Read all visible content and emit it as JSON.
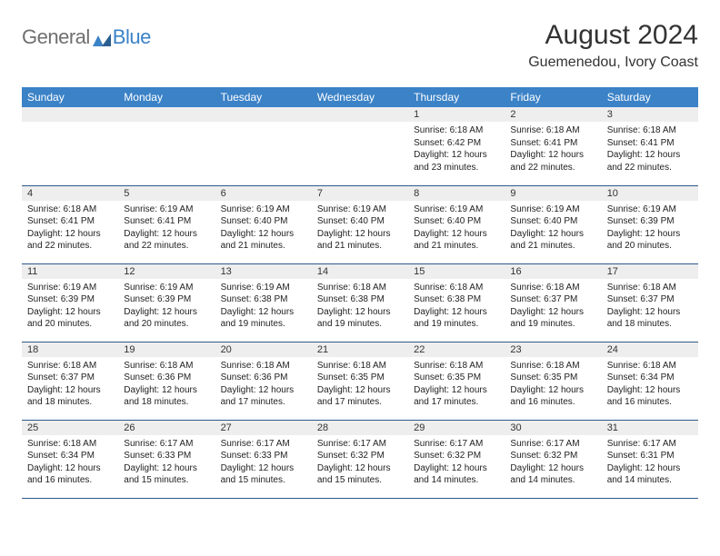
{
  "brand": {
    "word1": "General",
    "word2": "Blue"
  },
  "header": {
    "month_title": "August 2024",
    "location": "Guemenedou, Ivory Coast"
  },
  "colors": {
    "accent": "#3b82c7",
    "logo_gray": "#6f6f6f",
    "daynum_bg": "#eeeeee",
    "row_border": "#2d5a8a",
    "text": "#333333"
  },
  "daynames": [
    "Sunday",
    "Monday",
    "Tuesday",
    "Wednesday",
    "Thursday",
    "Friday",
    "Saturday"
  ],
  "weeks": [
    [
      null,
      null,
      null,
      null,
      {
        "n": "1",
        "sunrise": "6:18 AM",
        "sunset": "6:42 PM",
        "daylight": "12 hours and 23 minutes."
      },
      {
        "n": "2",
        "sunrise": "6:18 AM",
        "sunset": "6:41 PM",
        "daylight": "12 hours and 22 minutes."
      },
      {
        "n": "3",
        "sunrise": "6:18 AM",
        "sunset": "6:41 PM",
        "daylight": "12 hours and 22 minutes."
      }
    ],
    [
      {
        "n": "4",
        "sunrise": "6:18 AM",
        "sunset": "6:41 PM",
        "daylight": "12 hours and 22 minutes."
      },
      {
        "n": "5",
        "sunrise": "6:19 AM",
        "sunset": "6:41 PM",
        "daylight": "12 hours and 22 minutes."
      },
      {
        "n": "6",
        "sunrise": "6:19 AM",
        "sunset": "6:40 PM",
        "daylight": "12 hours and 21 minutes."
      },
      {
        "n": "7",
        "sunrise": "6:19 AM",
        "sunset": "6:40 PM",
        "daylight": "12 hours and 21 minutes."
      },
      {
        "n": "8",
        "sunrise": "6:19 AM",
        "sunset": "6:40 PM",
        "daylight": "12 hours and 21 minutes."
      },
      {
        "n": "9",
        "sunrise": "6:19 AM",
        "sunset": "6:40 PM",
        "daylight": "12 hours and 21 minutes."
      },
      {
        "n": "10",
        "sunrise": "6:19 AM",
        "sunset": "6:39 PM",
        "daylight": "12 hours and 20 minutes."
      }
    ],
    [
      {
        "n": "11",
        "sunrise": "6:19 AM",
        "sunset": "6:39 PM",
        "daylight": "12 hours and 20 minutes."
      },
      {
        "n": "12",
        "sunrise": "6:19 AM",
        "sunset": "6:39 PM",
        "daylight": "12 hours and 20 minutes."
      },
      {
        "n": "13",
        "sunrise": "6:19 AM",
        "sunset": "6:38 PM",
        "daylight": "12 hours and 19 minutes."
      },
      {
        "n": "14",
        "sunrise": "6:18 AM",
        "sunset": "6:38 PM",
        "daylight": "12 hours and 19 minutes."
      },
      {
        "n": "15",
        "sunrise": "6:18 AM",
        "sunset": "6:38 PM",
        "daylight": "12 hours and 19 minutes."
      },
      {
        "n": "16",
        "sunrise": "6:18 AM",
        "sunset": "6:37 PM",
        "daylight": "12 hours and 19 minutes."
      },
      {
        "n": "17",
        "sunrise": "6:18 AM",
        "sunset": "6:37 PM",
        "daylight": "12 hours and 18 minutes."
      }
    ],
    [
      {
        "n": "18",
        "sunrise": "6:18 AM",
        "sunset": "6:37 PM",
        "daylight": "12 hours and 18 minutes."
      },
      {
        "n": "19",
        "sunrise": "6:18 AM",
        "sunset": "6:36 PM",
        "daylight": "12 hours and 18 minutes."
      },
      {
        "n": "20",
        "sunrise": "6:18 AM",
        "sunset": "6:36 PM",
        "daylight": "12 hours and 17 minutes."
      },
      {
        "n": "21",
        "sunrise": "6:18 AM",
        "sunset": "6:35 PM",
        "daylight": "12 hours and 17 minutes."
      },
      {
        "n": "22",
        "sunrise": "6:18 AM",
        "sunset": "6:35 PM",
        "daylight": "12 hours and 17 minutes."
      },
      {
        "n": "23",
        "sunrise": "6:18 AM",
        "sunset": "6:35 PM",
        "daylight": "12 hours and 16 minutes."
      },
      {
        "n": "24",
        "sunrise": "6:18 AM",
        "sunset": "6:34 PM",
        "daylight": "12 hours and 16 minutes."
      }
    ],
    [
      {
        "n": "25",
        "sunrise": "6:18 AM",
        "sunset": "6:34 PM",
        "daylight": "12 hours and 16 minutes."
      },
      {
        "n": "26",
        "sunrise": "6:17 AM",
        "sunset": "6:33 PM",
        "daylight": "12 hours and 15 minutes."
      },
      {
        "n": "27",
        "sunrise": "6:17 AM",
        "sunset": "6:33 PM",
        "daylight": "12 hours and 15 minutes."
      },
      {
        "n": "28",
        "sunrise": "6:17 AM",
        "sunset": "6:32 PM",
        "daylight": "12 hours and 15 minutes."
      },
      {
        "n": "29",
        "sunrise": "6:17 AM",
        "sunset": "6:32 PM",
        "daylight": "12 hours and 14 minutes."
      },
      {
        "n": "30",
        "sunrise": "6:17 AM",
        "sunset": "6:32 PM",
        "daylight": "12 hours and 14 minutes."
      },
      {
        "n": "31",
        "sunrise": "6:17 AM",
        "sunset": "6:31 PM",
        "daylight": "12 hours and 14 minutes."
      }
    ]
  ],
  "labels": {
    "sunrise": "Sunrise: ",
    "sunset": "Sunset: ",
    "daylight": "Daylight: "
  }
}
